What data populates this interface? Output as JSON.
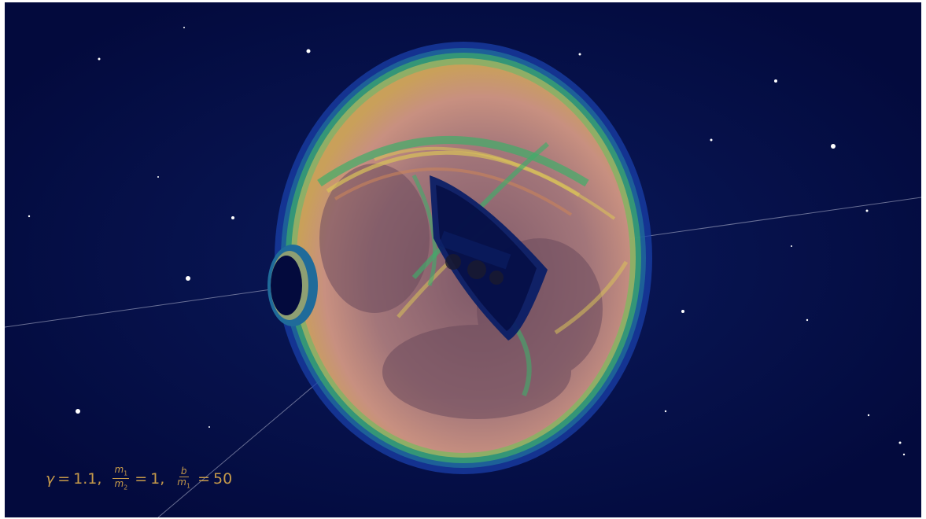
{
  "caption": {
    "gamma_symbol": "γ",
    "gamma_value": "1.1",
    "mass_ratio_num_symbol": "m",
    "mass_ratio_num_sub": "1",
    "mass_ratio_den_symbol": "m",
    "mass_ratio_den_sub": "2",
    "mass_ratio_value": "1",
    "b_ratio_num_symbol": "b",
    "b_ratio_den_symbol": "m",
    "b_ratio_den_sub": "1",
    "b_ratio_value": "50",
    "color": "#c69a4a"
  },
  "colors": {
    "background": "#030a3d",
    "shell_outer": "#1a3fa8",
    "shell_green": "#3fae6a",
    "shell_yellow": "#d9c25a",
    "shell_orange": "#c9835a",
    "shell_fill": "#9a6f72",
    "inner_cavity": "#0b1f66"
  }
}
